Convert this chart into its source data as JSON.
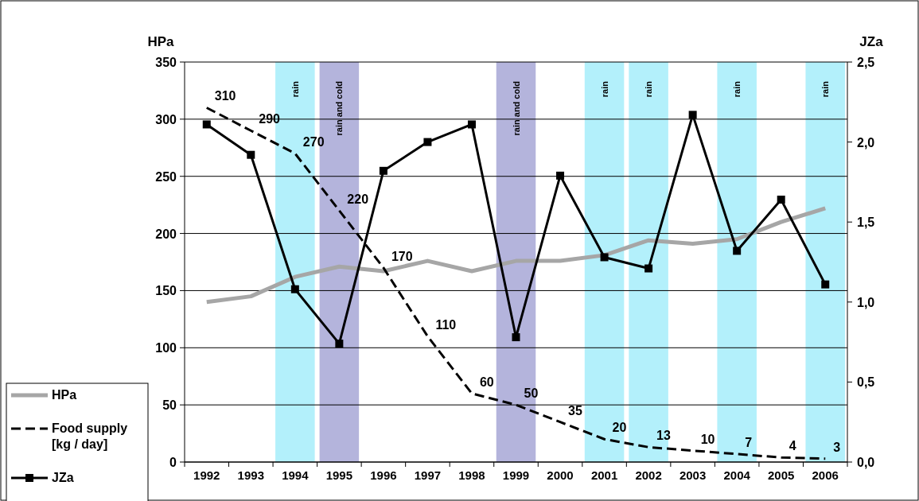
{
  "chart_data": {
    "type": "line",
    "ylabel": "HPa",
    "y2label": "JZa",
    "categories": [
      "1992",
      "1993",
      "1994",
      "1995",
      "1996",
      "1997",
      "1998",
      "1999",
      "2000",
      "2001",
      "2002",
      "2003",
      "2004",
      "2005",
      "2006"
    ],
    "ylim": [
      0,
      350
    ],
    "yticks": [
      0,
      50,
      100,
      150,
      200,
      250,
      300,
      350
    ],
    "y2lim": [
      0,
      2.5
    ],
    "y2ticks": [
      {
        "value": 0,
        "label": "0,0"
      },
      {
        "value": 0.5,
        "label": "0,5"
      },
      {
        "value": 1,
        "label": "1,0"
      },
      {
        "value": 1.5,
        "label": "1,5"
      },
      {
        "value": 2,
        "label": "2,0"
      },
      {
        "value": 2.5,
        "label": "2,5"
      }
    ],
    "grid": "y",
    "legend": "bottom left",
    "series": [
      {
        "name": "HPa",
        "color": "#a6a6a6",
        "marker": "none",
        "line_style": "solid",
        "values": [
          140,
          145,
          162,
          171,
          167,
          176,
          167,
          176,
          176,
          181,
          194,
          191,
          195,
          210,
          222
        ]
      },
      {
        "name": "Food supply [kg / day]",
        "color": "#000000",
        "marker": "none",
        "line_style": "dashed",
        "data_labels": true,
        "values": [
          310,
          290,
          270,
          220,
          170,
          110,
          60,
          50,
          35,
          20,
          13,
          10,
          7,
          4,
          3
        ]
      },
      {
        "name": "JZa",
        "color": "#000000",
        "marker": "square",
        "line_style": "solid",
        "axis": "y2",
        "values": [
          2.11,
          1.92,
          1.08,
          0.74,
          1.82,
          2.0,
          2.11,
          0.78,
          1.79,
          1.28,
          1.21,
          2.17,
          1.32,
          1.64,
          1.11
        ]
      }
    ],
    "bands": [
      {
        "axis": "x",
        "from": "1994",
        "to": "1994",
        "label": "rain",
        "color": "#b3f0fb"
      },
      {
        "axis": "x",
        "from": "1995",
        "to": "1995",
        "label": "rain and cold",
        "color": "#b4b4dc"
      },
      {
        "axis": "x",
        "from": "1999",
        "to": "1999",
        "label": "rain and cold",
        "color": "#b4b4dc"
      },
      {
        "axis": "x",
        "from": "2001",
        "to": "2001",
        "label": "rain",
        "color": "#b3f0fb"
      },
      {
        "axis": "x",
        "from": "2002",
        "to": "2002",
        "label": "rain",
        "color": "#b3f0fb"
      },
      {
        "axis": "x",
        "from": "2004",
        "to": "2004",
        "label": "rain",
        "color": "#b3f0fb"
      },
      {
        "axis": "x",
        "from": "2006",
        "to": "2006",
        "label": "rain",
        "color": "#b3f0fb"
      }
    ]
  }
}
